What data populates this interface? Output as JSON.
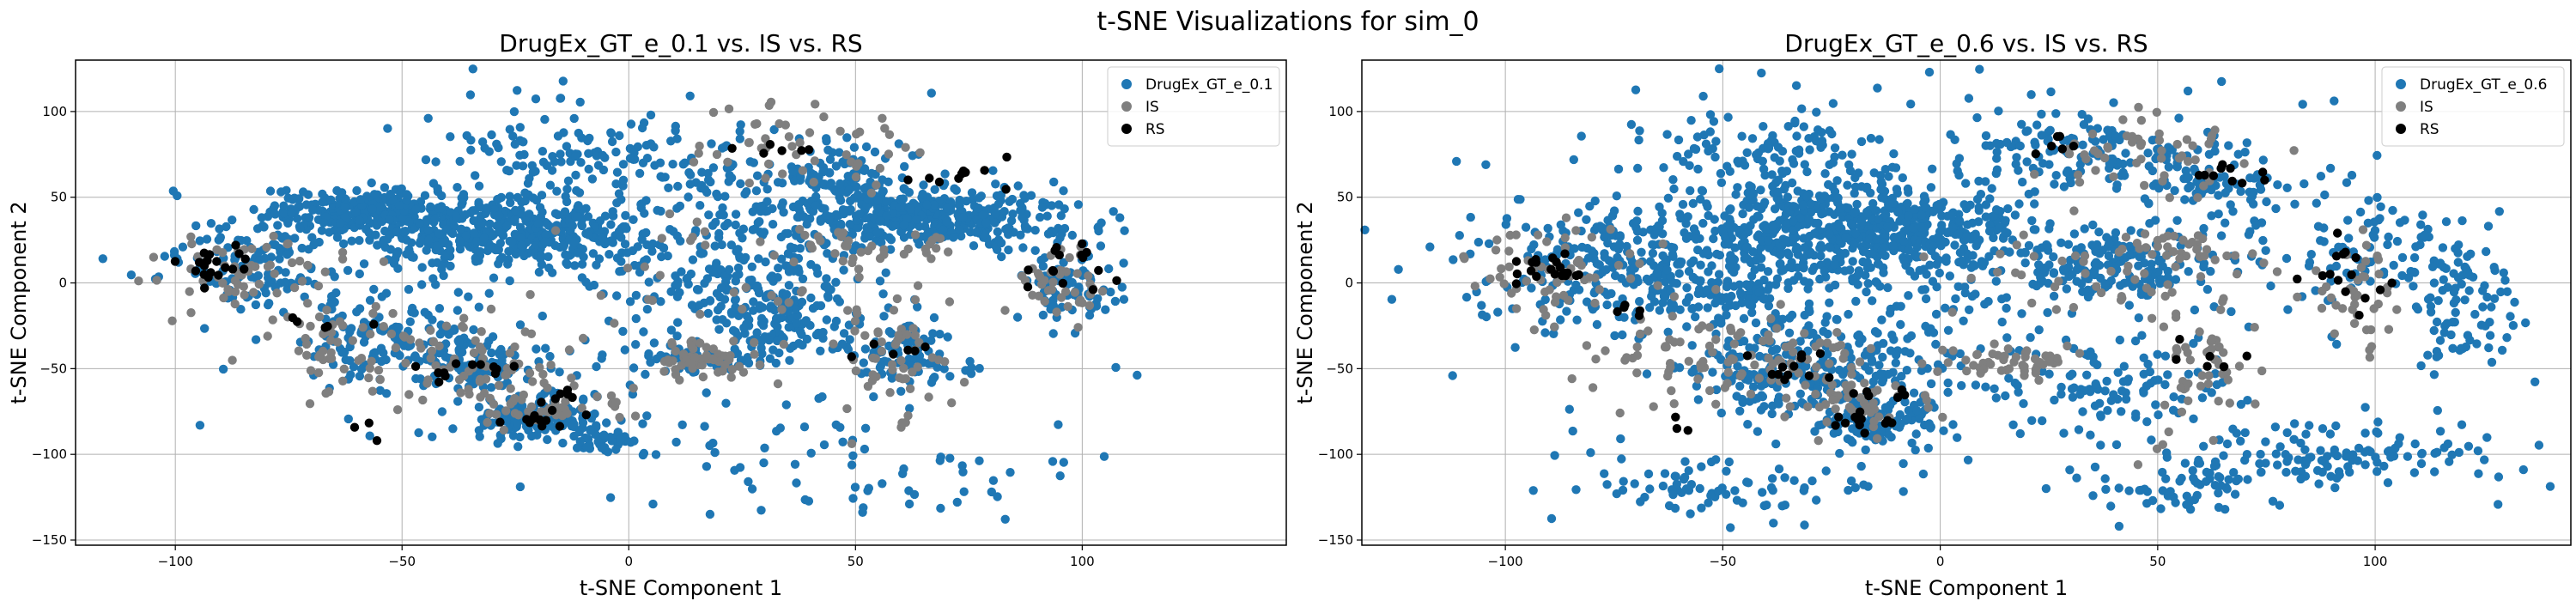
{
  "suptitle": "t-SNE Visualizations for sim_0",
  "colors": {
    "generated": "#1f77b4",
    "IS": "#7f7f7f",
    "RS": "#000000",
    "grid": "#b0b0b0"
  },
  "chart_data": [
    {
      "type": "scatter",
      "title": "DrugEx_GT_e_0.1 vs. IS vs. RS",
      "xlabel": "t-SNE Component 1",
      "ylabel": "t-SNE Component 2",
      "xlim": [
        -122,
        145
      ],
      "ylim": [
        -153,
        130
      ],
      "xticks": [
        -100,
        -50,
        0,
        50,
        100
      ],
      "yticks": [
        -150,
        -100,
        -50,
        0,
        50,
        100
      ],
      "grid": true,
      "legend_position": "top-right",
      "series": [
        {
          "name": "DrugEx_GT_e_0.1",
          "color": "#1f77b4",
          "clusters": [
            {
              "cx": -60,
              "cy": 42,
              "sx": 10,
              "sy": 6,
              "n": 260
            },
            {
              "cx": -40,
              "cy": 30,
              "sx": 12,
              "sy": 10,
              "n": 180
            },
            {
              "cx": -18,
              "cy": 30,
              "sx": 10,
              "sy": 9,
              "n": 230
            },
            {
              "cx": 65,
              "cy": 38,
              "sx": 16,
              "sy": 8,
              "n": 420
            },
            {
              "cx": 48,
              "cy": 62,
              "sx": 6,
              "sy": 10,
              "n": 80
            },
            {
              "cx": -20,
              "cy": -80,
              "sx": 7,
              "sy": 6,
              "n": 130
            },
            {
              "cx": -5,
              "cy": -92,
              "sx": 4,
              "sy": 4,
              "n": 40
            },
            {
              "cx": -35,
              "cy": -48,
              "sx": 8,
              "sy": 9,
              "n": 100
            },
            {
              "cx": -55,
              "cy": -30,
              "sx": 10,
              "sy": 15,
              "n": 120
            },
            {
              "cx": -85,
              "cy": 10,
              "sx": 10,
              "sy": 15,
              "n": 120
            },
            {
              "cx": 35,
              "cy": -25,
              "sx": 8,
              "sy": 10,
              "n": 100
            },
            {
              "cx": 25,
              "cy": 0,
              "sx": 15,
              "sy": 15,
              "n": 150
            },
            {
              "cx": 15,
              "cy": -45,
              "sx": 8,
              "sy": 5,
              "n": 60
            },
            {
              "cx": 60,
              "cy": -45,
              "sx": 8,
              "sy": 12,
              "n": 80
            },
            {
              "cx": 98,
              "cy": 0,
              "sx": 5,
              "sy": 12,
              "n": 80
            },
            {
              "cx": 10,
              "cy": 60,
              "sx": 20,
              "sy": 20,
              "n": 150
            },
            {
              "cx": -15,
              "cy": 80,
              "sx": 15,
              "sy": 12,
              "n": 60
            },
            {
              "cx": 45,
              "cy": -110,
              "sx": 20,
              "sy": 15,
              "n": 60
            },
            {
              "cx": 0,
              "cy": 0,
              "sx": 45,
              "sy": 50,
              "n": 200
            }
          ]
        },
        {
          "name": "IS",
          "color": "#7f7f7f",
          "clusters": [
            {
              "cx": -85,
              "cy": 5,
              "sx": 10,
              "sy": 12,
              "n": 60
            },
            {
              "cx": -60,
              "cy": -40,
              "sx": 10,
              "sy": 15,
              "n": 60
            },
            {
              "cx": -30,
              "cy": -45,
              "sx": 10,
              "sy": 10,
              "n": 50
            },
            {
              "cx": -20,
              "cy": -70,
              "sx": 10,
              "sy": 8,
              "n": 50
            },
            {
              "cx": 15,
              "cy": -45,
              "sx": 8,
              "sy": 5,
              "n": 50
            },
            {
              "cx": 40,
              "cy": 80,
              "sx": 12,
              "sy": 12,
              "n": 50
            },
            {
              "cx": 60,
              "cy": -50,
              "sx": 6,
              "sy": 20,
              "n": 50
            },
            {
              "cx": 95,
              "cy": 0,
              "sx": 5,
              "sy": 12,
              "n": 40
            },
            {
              "cx": 30,
              "cy": 0,
              "sx": 20,
              "sy": 20,
              "n": 50
            },
            {
              "cx": 50,
              "cy": 20,
              "sx": 10,
              "sy": 5,
              "n": 30
            }
          ]
        },
        {
          "name": "RS",
          "color": "#000000",
          "clusters": [
            {
              "cx": -90,
              "cy": 12,
              "sx": 4,
              "sy": 5,
              "n": 20
            },
            {
              "cx": -35,
              "cy": -50,
              "sx": 5,
              "sy": 4,
              "n": 12
            },
            {
              "cx": -18,
              "cy": -80,
              "sx": 4,
              "sy": 3,
              "n": 12
            },
            {
              "cx": -15,
              "cy": -65,
              "sx": 3,
              "sy": 3,
              "n": 6
            },
            {
              "cx": 70,
              "cy": 60,
              "sx": 8,
              "sy": 5,
              "n": 10
            },
            {
              "cx": 30,
              "cy": 80,
              "sx": 5,
              "sy": 3,
              "n": 6
            },
            {
              "cx": 97,
              "cy": 5,
              "sx": 5,
              "sy": 12,
              "n": 15
            },
            {
              "cx": 60,
              "cy": -40,
              "sx": 5,
              "sy": 5,
              "n": 6
            },
            {
              "cx": -68,
              "cy": -20,
              "sx": 5,
              "sy": 5,
              "n": 5
            },
            {
              "cx": -60,
              "cy": -85,
              "sx": 3,
              "sy": 3,
              "n": 3
            }
          ]
        }
      ]
    },
    {
      "type": "scatter",
      "title": "DrugEx_GT_e_0.6 vs. IS vs. RS",
      "xlabel": "t-SNE Component 1",
      "ylabel": "t-SNE Component 2",
      "xlim": [
        -133,
        145
      ],
      "ylim": [
        -153,
        130
      ],
      "xticks": [
        -100,
        -50,
        0,
        50,
        100
      ],
      "yticks": [
        -150,
        -100,
        -50,
        0,
        50,
        100
      ],
      "grid": true,
      "legend_position": "top-right",
      "series": [
        {
          "name": "DrugEx_GT_e_0.6",
          "color": "#1f77b4",
          "clusters": [
            {
              "cx": -20,
              "cy": 30,
              "sx": 20,
              "sy": 15,
              "n": 650
            },
            {
              "cx": 40,
              "cy": 10,
              "sx": 12,
              "sy": 10,
              "n": 150
            },
            {
              "cx": -60,
              "cy": 0,
              "sx": 20,
              "sy": 15,
              "n": 220
            },
            {
              "cx": -30,
              "cy": -50,
              "sx": 15,
              "sy": 15,
              "n": 220
            },
            {
              "cx": -15,
              "cy": -80,
              "sx": 8,
              "sy": 8,
              "n": 90
            },
            {
              "cx": 90,
              "cy": -100,
              "sx": 20,
              "sy": 8,
              "n": 120
            },
            {
              "cx": 60,
              "cy": -120,
              "sx": 15,
              "sy": 8,
              "n": 60
            },
            {
              "cx": 120,
              "cy": -10,
              "sx": 6,
              "sy": 20,
              "n": 80
            },
            {
              "cx": 100,
              "cy": 20,
              "sx": 10,
              "sy": 15,
              "n": 80
            },
            {
              "cx": -40,
              "cy": 80,
              "sx": 15,
              "sy": 15,
              "n": 100
            },
            {
              "cx": 30,
              "cy": 80,
              "sx": 15,
              "sy": 12,
              "n": 100
            },
            {
              "cx": 60,
              "cy": 60,
              "sx": 10,
              "sy": 10,
              "n": 80
            },
            {
              "cx": 40,
              "cy": -60,
              "sx": 12,
              "sy": 12,
              "n": 80
            },
            {
              "cx": -80,
              "cy": 20,
              "sx": 15,
              "sy": 15,
              "n": 100
            },
            {
              "cx": -50,
              "cy": -120,
              "sx": 20,
              "sy": 10,
              "n": 80
            },
            {
              "cx": 0,
              "cy": 0,
              "sx": 60,
              "sy": 55,
              "n": 350
            }
          ]
        },
        {
          "name": "IS",
          "color": "#7f7f7f",
          "clusters": [
            {
              "cx": -90,
              "cy": 5,
              "sx": 10,
              "sy": 12,
              "n": 60
            },
            {
              "cx": -60,
              "cy": -40,
              "sx": 10,
              "sy": 15,
              "n": 60
            },
            {
              "cx": -30,
              "cy": -45,
              "sx": 10,
              "sy": 10,
              "n": 50
            },
            {
              "cx": -20,
              "cy": -70,
              "sx": 10,
              "sy": 8,
              "n": 50
            },
            {
              "cx": 15,
              "cy": -45,
              "sx": 8,
              "sy": 5,
              "n": 50
            },
            {
              "cx": 45,
              "cy": 80,
              "sx": 12,
              "sy": 12,
              "n": 50
            },
            {
              "cx": 60,
              "cy": -50,
              "sx": 6,
              "sy": 20,
              "n": 50
            },
            {
              "cx": 95,
              "cy": -10,
              "sx": 5,
              "sy": 15,
              "n": 40
            },
            {
              "cx": 40,
              "cy": 10,
              "sx": 15,
              "sy": 15,
              "n": 50
            },
            {
              "cx": 55,
              "cy": 20,
              "sx": 8,
              "sy": 5,
              "n": 30
            }
          ]
        },
        {
          "name": "RS",
          "color": "#000000",
          "clusters": [
            {
              "cx": -90,
              "cy": 10,
              "sx": 4,
              "sy": 5,
              "n": 20
            },
            {
              "cx": -35,
              "cy": -50,
              "sx": 5,
              "sy": 4,
              "n": 12
            },
            {
              "cx": -18,
              "cy": -80,
              "sx": 4,
              "sy": 3,
              "n": 12
            },
            {
              "cx": -15,
              "cy": -65,
              "sx": 3,
              "sy": 3,
              "n": 6
            },
            {
              "cx": 65,
              "cy": 63,
              "sx": 8,
              "sy": 4,
              "n": 10
            },
            {
              "cx": 25,
              "cy": 80,
              "sx": 5,
              "sy": 3,
              "n": 6
            },
            {
              "cx": 95,
              "cy": 0,
              "sx": 5,
              "sy": 15,
              "n": 15
            },
            {
              "cx": 60,
              "cy": -40,
              "sx": 5,
              "sy": 5,
              "n": 6
            },
            {
              "cx": -70,
              "cy": -20,
              "sx": 5,
              "sy": 5,
              "n": 5
            },
            {
              "cx": -60,
              "cy": -85,
              "sx": 3,
              "sy": 3,
              "n": 3
            }
          ]
        }
      ]
    }
  ]
}
